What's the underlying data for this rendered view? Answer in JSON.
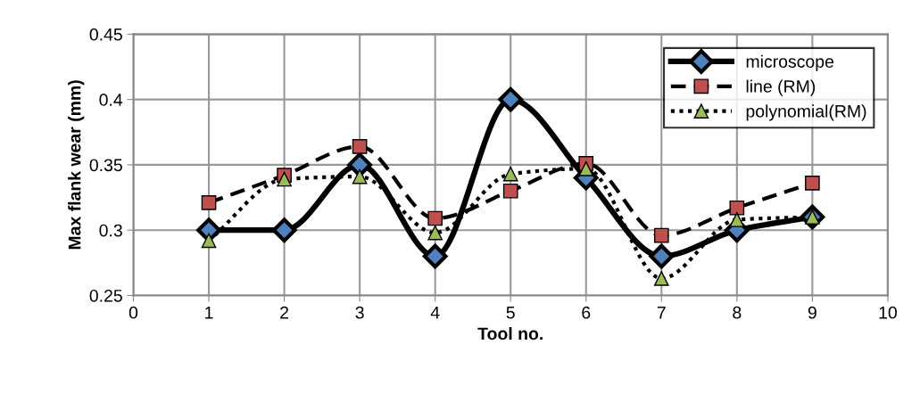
{
  "chart_data": {
    "type": "line",
    "xlabel": "Tool no.",
    "ylabel": "Max flank wear (mm)",
    "x": [
      1,
      2,
      3,
      4,
      5,
      6,
      7,
      8,
      9
    ],
    "series": [
      {
        "name": "microscope",
        "color": "#4f81bd",
        "marker": "diamond",
        "line_style": "solid",
        "values": [
          0.3,
          0.3,
          0.35,
          0.28,
          0.4,
          0.34,
          0.28,
          0.3,
          0.31
        ]
      },
      {
        "name": "line (RM)",
        "color": "#c0504d",
        "marker": "square",
        "line_style": "dashed",
        "values": [
          0.321,
          0.342,
          0.364,
          0.309,
          0.33,
          0.351,
          0.296,
          0.317,
          0.336
        ]
      },
      {
        "name": "polynomial(RM)",
        "color": "#9bbb59",
        "marker": "triangle",
        "line_style": "dotted",
        "values": [
          0.292,
          0.339,
          0.341,
          0.298,
          0.343,
          0.347,
          0.263,
          0.308,
          0.31
        ]
      }
    ],
    "xlim": [
      0,
      10
    ],
    "xticks": [
      0,
      1,
      2,
      3,
      4,
      5,
      6,
      7,
      8,
      9,
      10
    ],
    "ylim": [
      0.25,
      0.45
    ],
    "yticks": [
      0.25,
      0.3,
      0.35,
      0.4,
      0.45
    ],
    "grid": true,
    "legend": "top right"
  }
}
